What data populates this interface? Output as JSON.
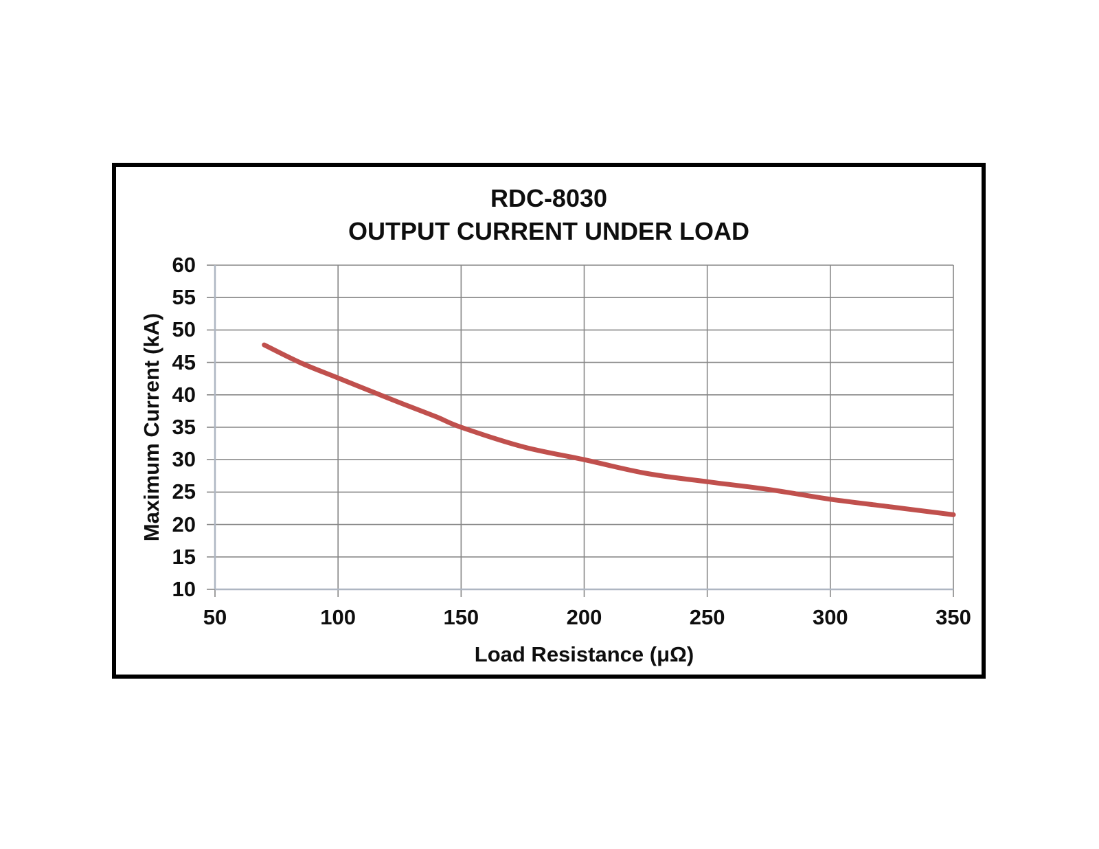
{
  "chart": {
    "title_line1": "RDC-8030",
    "title_line2": "OUTPUT CURRENT UNDER LOAD",
    "colors": {
      "curve": "#C0504D",
      "gridline": "#878787",
      "tick": "#878787",
      "axis_line": "#AEB6C2",
      "border": "#000000",
      "text": "#0e0e0e",
      "background": "#ffffff"
    }
  },
  "chart_data": {
    "type": "line",
    "title": "RDC-8030 OUTPUT CURRENT UNDER LOAD",
    "xlabel": "Load Resistance (μΩ)",
    "ylabel": "Maximum Current (kA)",
    "xlim": [
      50,
      350
    ],
    "ylim": [
      10,
      60
    ],
    "x_ticks": [
      50,
      100,
      150,
      200,
      250,
      300,
      350
    ],
    "y_ticks": [
      10,
      15,
      20,
      25,
      30,
      35,
      40,
      45,
      50,
      55,
      60
    ],
    "grid": true,
    "legend_position": "none",
    "series": [
      {
        "color": "#C0504D",
        "x": [
          70,
          85,
          100,
          117,
          125,
          140,
          150,
          175,
          200,
          225,
          250,
          275,
          300,
          325,
          350
        ],
        "y": [
          47.7,
          44.9,
          42.6,
          40.0,
          38.8,
          36.6,
          35.0,
          32.0,
          30.0,
          27.9,
          26.6,
          25.4,
          23.9,
          22.7,
          21.5
        ]
      }
    ]
  }
}
